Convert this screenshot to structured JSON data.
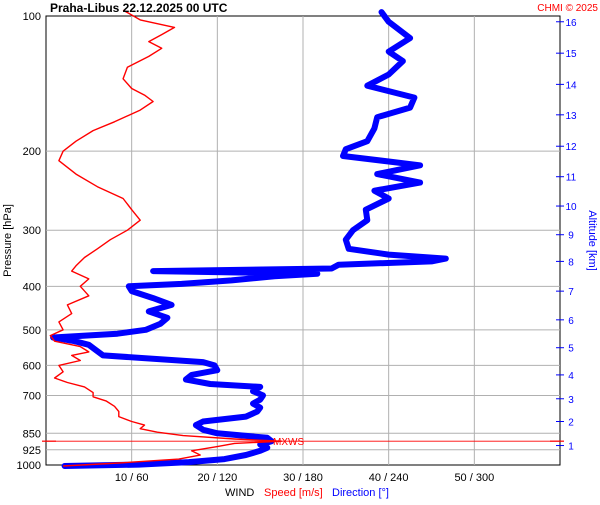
{
  "chart_data": {
    "type": "line",
    "title": "Praha-Libus    22.12.2025 00 UTC",
    "copyright": "CHMI © 2025",
    "ylabel_left": "Pressure [hPa]",
    "ylabel_right": "Altitude [km]",
    "xlabel_parts": {
      "prefix": "WIND",
      "speed": "Speed [m/s]",
      "direction": "Direction [°]"
    },
    "pressure_ticks": [
      100,
      200,
      300,
      400,
      500,
      600,
      700,
      850,
      925,
      1000
    ],
    "pressure_tick_labels": [
      "100",
      "200",
      "300",
      "400",
      "500",
      "600",
      "700",
      "850",
      "925",
      "1000"
    ],
    "x_tick_labels": [
      "10 / 60",
      "20 / 120",
      "30 / 180",
      "40 / 240",
      "50 / 300"
    ],
    "speed_range": [
      0,
      60
    ],
    "direction_range": [
      0,
      360
    ],
    "altitude_ticks": [
      1,
      2,
      3,
      4,
      5,
      6,
      7,
      8,
      9,
      10,
      11,
      12,
      13,
      14,
      15,
      16
    ],
    "altitude_tick_labels": [
      "1",
      "2",
      "3",
      "4",
      "5",
      "6",
      "7",
      "8",
      "9",
      "10",
      "11",
      "12",
      "13",
      "14",
      "15",
      "16"
    ],
    "altitude_pressure": [
      [
        1,
        905
      ],
      [
        2,
        800
      ],
      [
        3,
        712
      ],
      [
        4,
        630
      ],
      [
        5,
        548
      ],
      [
        6,
        475
      ],
      [
        7,
        410
      ],
      [
        8,
        352
      ],
      [
        9,
        307
      ],
      [
        10,
        265
      ],
      [
        11,
        228
      ],
      [
        12,
        195
      ],
      [
        13,
        166
      ],
      [
        14,
        142
      ],
      [
        15,
        121
      ],
      [
        16,
        103
      ]
    ],
    "max_wind_label": "MXWS",
    "max_wind_pressure": 885,
    "colors": {
      "speed": "#ff0000",
      "direction": "#0000ff",
      "grid": "#b0b0b0",
      "text": "#000000",
      "title": "#000000",
      "copyright": "#ff0000"
    },
    "series": [
      {
        "name": "Speed [m/s]",
        "unit": "m/s",
        "points": [
          [
            1005,
            2.0
          ],
          [
            990,
            8.5
          ],
          [
            970,
            15.5
          ],
          [
            950,
            18.0
          ],
          [
            930,
            17.0
          ],
          [
            910,
            20.0
          ],
          [
            895,
            22.0
          ],
          [
            885,
            27.5
          ],
          [
            875,
            22.0
          ],
          [
            860,
            16.0
          ],
          [
            845,
            13.0
          ],
          [
            830,
            11.0
          ],
          [
            815,
            11.5
          ],
          [
            800,
            10.0
          ],
          [
            780,
            8.5
          ],
          [
            760,
            8.5
          ],
          [
            740,
            8.0
          ],
          [
            720,
            7.0
          ],
          [
            705,
            5.5
          ],
          [
            690,
            5.5
          ],
          [
            670,
            4.5
          ],
          [
            655,
            2.5
          ],
          [
            640,
            1.0
          ],
          [
            620,
            2.0
          ],
          [
            600,
            1.5
          ],
          [
            585,
            4.0
          ],
          [
            570,
            3.0
          ],
          [
            560,
            5.0
          ],
          [
            545,
            4.0
          ],
          [
            530,
            1.0
          ],
          [
            515,
            0.5
          ],
          [
            500,
            2.0
          ],
          [
            480,
            1.5
          ],
          [
            460,
            3.0
          ],
          [
            440,
            2.5
          ],
          [
            420,
            5.0
          ],
          [
            400,
            4.0
          ],
          [
            385,
            5.0
          ],
          [
            370,
            3.0
          ],
          [
            360,
            3.5
          ],
          [
            345,
            4.5
          ],
          [
            330,
            6.0
          ],
          [
            315,
            7.5
          ],
          [
            300,
            9.5
          ],
          [
            285,
            11.0
          ],
          [
            270,
            10.0
          ],
          [
            255,
            9.0
          ],
          [
            240,
            6.0
          ],
          [
            225,
            3.5
          ],
          [
            210,
            1.5
          ],
          [
            200,
            2.0
          ],
          [
            190,
            3.5
          ],
          [
            180,
            5.5
          ],
          [
            172,
            8.0
          ],
          [
            162,
            11.0
          ],
          [
            155,
            12.5
          ],
          [
            150,
            11.5
          ],
          [
            145,
            10.0
          ],
          [
            138,
            9.0
          ],
          [
            130,
            9.5
          ],
          [
            123,
            12.0
          ],
          [
            118,
            13.5
          ],
          [
            114,
            12.0
          ],
          [
            110,
            13.5
          ],
          [
            106,
            15.0
          ],
          [
            102,
            11.0
          ],
          [
            97,
            9.0
          ]
        ]
      },
      {
        "name": "Direction [°]",
        "unit": "deg",
        "points": [
          [
            1005,
            13
          ],
          [
            998,
            65
          ],
          [
            985,
            100
          ],
          [
            970,
            125
          ],
          [
            950,
            140
          ],
          [
            930,
            150
          ],
          [
            915,
            155
          ],
          [
            900,
            150
          ],
          [
            885,
            158
          ],
          [
            870,
            155
          ],
          [
            850,
            120
          ],
          [
            835,
            110
          ],
          [
            815,
            105
          ],
          [
            800,
            110
          ],
          [
            780,
            140
          ],
          [
            760,
            148
          ],
          [
            745,
            150
          ],
          [
            730,
            145
          ],
          [
            715,
            150
          ],
          [
            700,
            152
          ],
          [
            685,
            145
          ],
          [
            670,
            150
          ],
          [
            660,
            115
          ],
          [
            645,
            98
          ],
          [
            630,
            102
          ],
          [
            615,
            120
          ],
          [
            600,
            118
          ],
          [
            590,
            110
          ],
          [
            570,
            40
          ],
          [
            555,
            35
          ],
          [
            540,
            30
          ],
          [
            530,
            20
          ],
          [
            520,
            5
          ],
          [
            510,
            50
          ],
          [
            500,
            70
          ],
          [
            485,
            80
          ],
          [
            470,
            85
          ],
          [
            455,
            72
          ],
          [
            440,
            88
          ],
          [
            425,
            75
          ],
          [
            410,
            60
          ],
          [
            400,
            58
          ],
          [
            395,
            95
          ],
          [
            388,
            130
          ],
          [
            380,
            160
          ],
          [
            375,
            190
          ],
          [
            370,
            75
          ],
          [
            365,
            200
          ],
          [
            358,
            205
          ],
          [
            352,
            270
          ],
          [
            347,
            280
          ],
          [
            340,
            240
          ],
          [
            330,
            212
          ],
          [
            315,
            210
          ],
          [
            300,
            215
          ],
          [
            285,
            225
          ],
          [
            270,
            224
          ],
          [
            255,
            240
          ],
          [
            245,
            230
          ],
          [
            235,
            262
          ],
          [
            225,
            232
          ],
          [
            215,
            262
          ],
          [
            205,
            208
          ],
          [
            198,
            210
          ],
          [
            190,
            225
          ],
          [
            178,
            230
          ],
          [
            168,
            232
          ],
          [
            160,
            255
          ],
          [
            152,
            258
          ],
          [
            143,
            225
          ],
          [
            135,
            240
          ],
          [
            126,
            250
          ],
          [
            120,
            240
          ],
          [
            112,
            255
          ],
          [
            103,
            240
          ],
          [
            98,
            235
          ]
        ]
      }
    ],
    "left_markers": [
      "−",
      "−"
    ]
  }
}
